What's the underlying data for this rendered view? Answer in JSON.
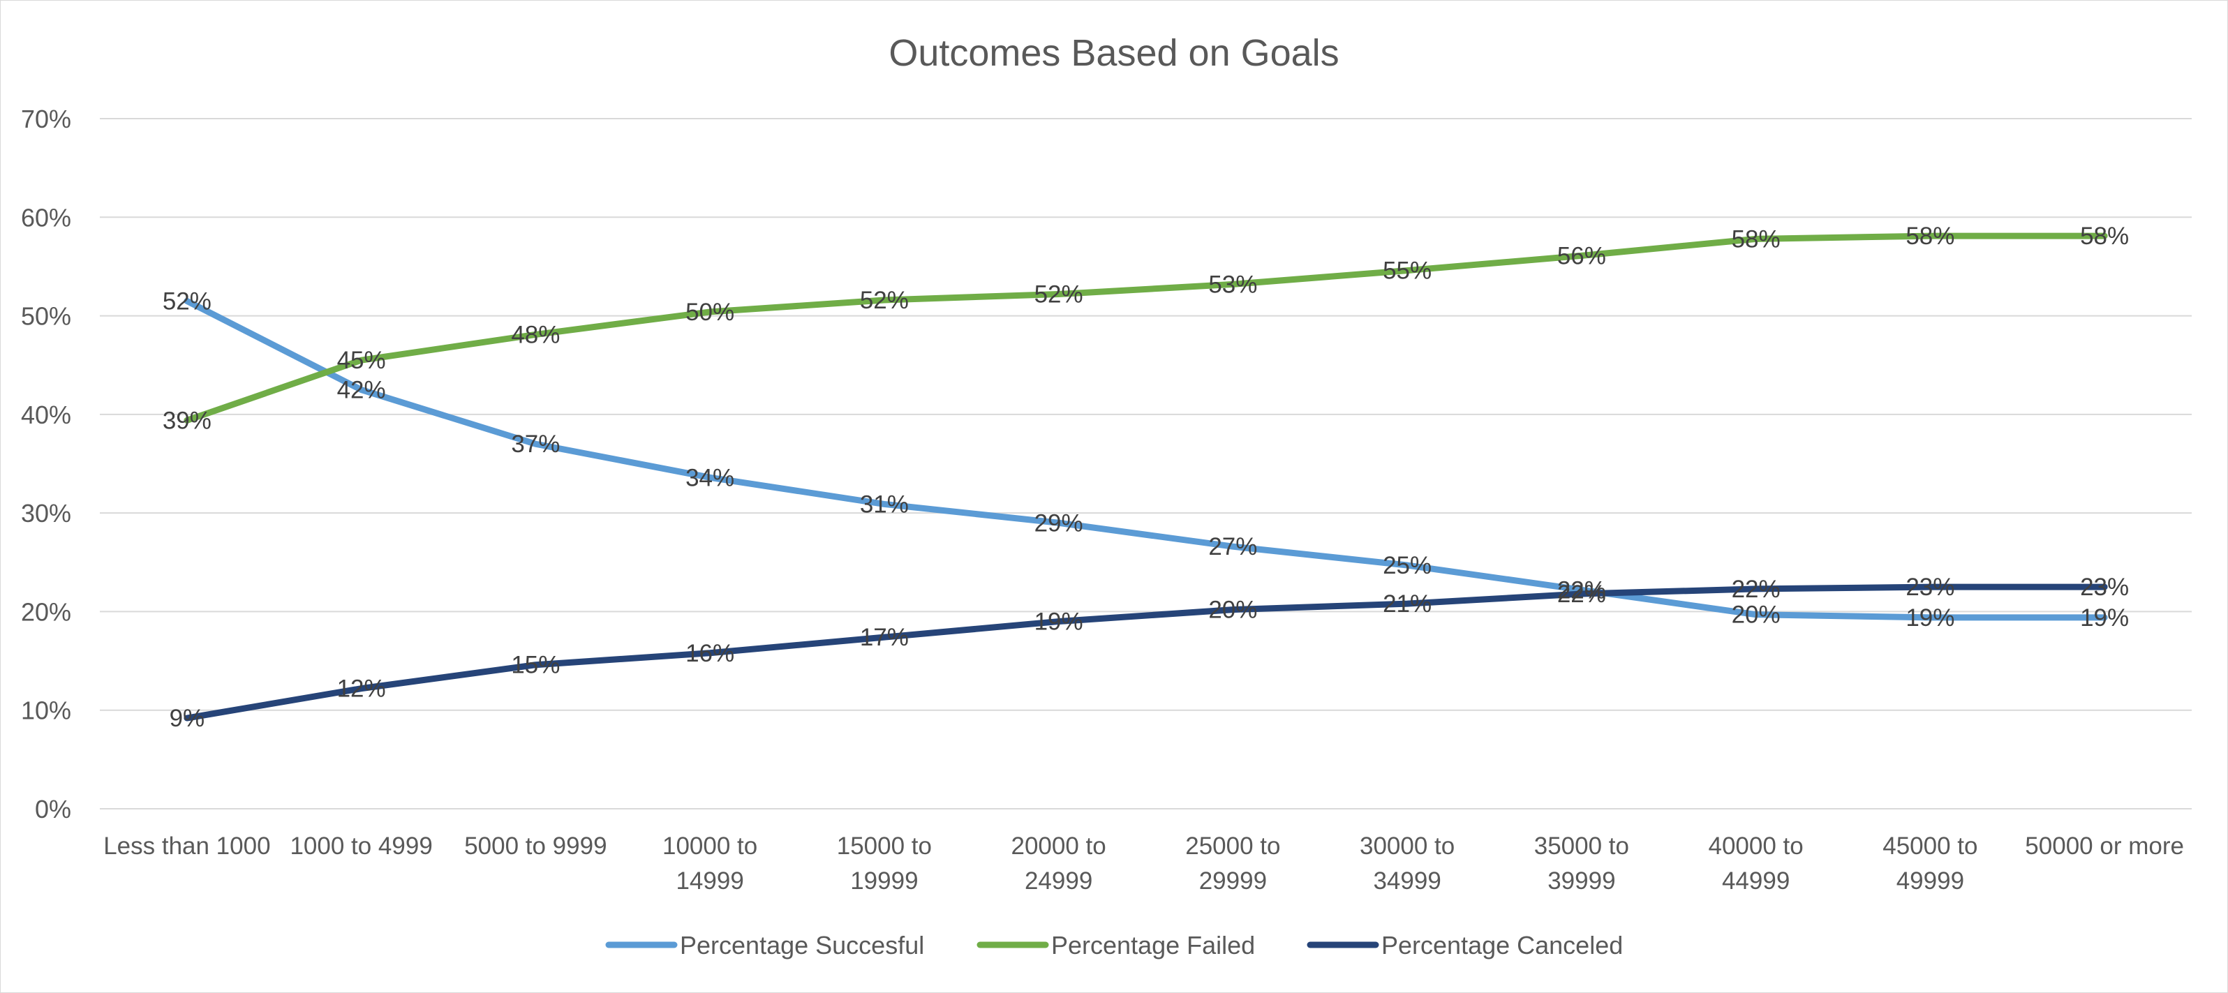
{
  "chart_data": {
    "type": "line",
    "title": "Outcomes Based on Goals",
    "xlabel": "",
    "ylabel": "",
    "ylim": [
      0,
      0.7
    ],
    "y_ticks": [
      "0%",
      "10%",
      "20%",
      "30%",
      "40%",
      "50%",
      "60%",
      "70%"
    ],
    "grid": true,
    "legend_position": "bottom",
    "categories": [
      [
        "Less than 1000"
      ],
      [
        "1000 to 4999"
      ],
      [
        "5000 to 9999"
      ],
      [
        "10000 to",
        "14999"
      ],
      [
        "15000 to",
        "19999"
      ],
      [
        "20000 to",
        "24999"
      ],
      [
        "25000 to",
        "29999"
      ],
      [
        "30000 to",
        "34999"
      ],
      [
        "35000 to",
        "39999"
      ],
      [
        "40000 to",
        "44999"
      ],
      [
        "45000 to",
        "49999"
      ],
      [
        "50000 or more"
      ]
    ],
    "series": [
      {
        "name": "Percentage Succesful",
        "color": "#5b9bd5",
        "values": [
          0.515,
          0.425,
          0.37,
          0.336,
          0.309,
          0.29,
          0.266,
          0.247,
          0.222,
          0.197,
          0.194,
          0.194
        ],
        "labels": [
          "52%",
          "42%",
          "37%",
          "34%",
          "31%",
          "29%",
          "27%",
          "25%",
          "22%",
          "20%",
          "19%",
          "19%"
        ]
      },
      {
        "name": "Percentage Failed",
        "color": "#70ad47",
        "values": [
          0.394,
          0.455,
          0.481,
          0.504,
          0.516,
          0.522,
          0.532,
          0.546,
          0.561,
          0.578,
          0.581,
          0.581
        ],
        "labels": [
          "39%",
          "45%",
          "48%",
          "50%",
          "52%",
          "52%",
          "53%",
          "55%",
          "56%",
          "58%",
          "58%",
          "58%"
        ]
      },
      {
        "name": "Percentage Canceled",
        "color": "#264478",
        "values": [
          0.092,
          0.122,
          0.146,
          0.158,
          0.174,
          0.19,
          0.202,
          0.208,
          0.218,
          0.223,
          0.225,
          0.225
        ],
        "labels": [
          "9%",
          "12%",
          "15%",
          "16%",
          "17%",
          "19%",
          "20%",
          "21%",
          "22%",
          "22%",
          "23%",
          "23%"
        ]
      }
    ]
  }
}
